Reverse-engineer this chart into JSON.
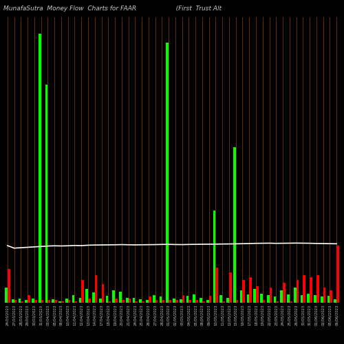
{
  "title": "MunafaSutra  Money Flow  Charts for FAAR                    (First  Trust Alt",
  "background_color": "#000000",
  "categories": [
    "24/03/2023",
    "27/03/2023",
    "28/03/2023",
    "29/03/2023",
    "30/03/2023",
    "31/03/2023",
    "03/04/2023",
    "05/04/2023",
    "06/04/2023",
    "10/04/2023",
    "11/04/2023",
    "12/04/2023",
    "13/04/2023",
    "14/04/2023",
    "17/04/2023",
    "18/04/2023",
    "19/04/2023",
    "20/04/2023",
    "21/04/2023",
    "24/04/2023",
    "25/04/2023",
    "26/04/2023",
    "27/04/2023",
    "28/04/2023",
    "01/05/2023",
    "02/05/2023",
    "03/05/2023",
    "04/05/2023",
    "05/05/2023",
    "08/05/2023",
    "09/05/2023",
    "10/05/2023",
    "11/05/2023",
    "12/05/2023",
    "15/05/2023",
    "16/05/2023",
    "17/05/2023",
    "18/05/2023",
    "19/05/2023",
    "22/05/2023",
    "23/05/2023",
    "24/05/2023",
    "25/05/2023",
    "26/05/2023",
    "30/05/2023",
    "31/05/2023",
    "01/06/2023",
    "02/06/2023",
    "05/06/2023",
    "06/06/2023"
  ],
  "inflow": [
    18,
    4,
    5,
    3,
    5,
    320,
    260,
    4,
    2,
    5,
    9,
    6,
    16,
    12,
    5,
    8,
    15,
    13,
    6,
    6,
    4,
    3,
    9,
    7,
    310,
    5,
    4,
    8,
    10,
    6,
    3,
    110,
    9,
    6,
    185,
    15,
    10,
    16,
    11,
    9,
    7,
    15,
    10,
    18,
    9,
    11,
    9,
    7,
    8,
    4
  ],
  "outflow": [
    40,
    3,
    2,
    9,
    3,
    3,
    3,
    3,
    2,
    3,
    2,
    27,
    5,
    33,
    22,
    2,
    5,
    3,
    5,
    2,
    2,
    7,
    3,
    3,
    3,
    3,
    9,
    3,
    3,
    2,
    8,
    42,
    2,
    36,
    3,
    27,
    30,
    20,
    3,
    18,
    2,
    24,
    2,
    27,
    33,
    30,
    33,
    18,
    15,
    68
  ],
  "price_line_normalized": [
    68,
    65,
    65.5,
    66,
    66.5,
    67,
    67.5,
    67.8,
    67.6,
    67.8,
    68.2,
    68.0,
    68.5,
    68.7,
    68.8,
    68.9,
    69.0,
    69.2,
    69.0,
    68.9,
    69.0,
    69.1,
    69.2,
    69.4,
    69.5,
    69.3,
    69.2,
    69.4,
    69.5,
    69.6,
    69.7,
    69.8,
    69.9,
    70.0,
    70.1,
    70.3,
    70.5,
    70.7,
    70.8,
    70.9,
    70.7,
    70.8,
    70.9,
    71.0,
    70.9,
    70.8,
    70.6,
    70.5,
    70.3,
    70.2
  ],
  "vertical_line_color": "#8B4500",
  "price_line_color": "#ffffff",
  "title_color": "#c8c8c8",
  "tick_label_color": "#c8c8c8",
  "title_fontsize": 6.5,
  "tick_fontsize": 3.8,
  "ylim_max": 340,
  "bar_width": 0.38
}
